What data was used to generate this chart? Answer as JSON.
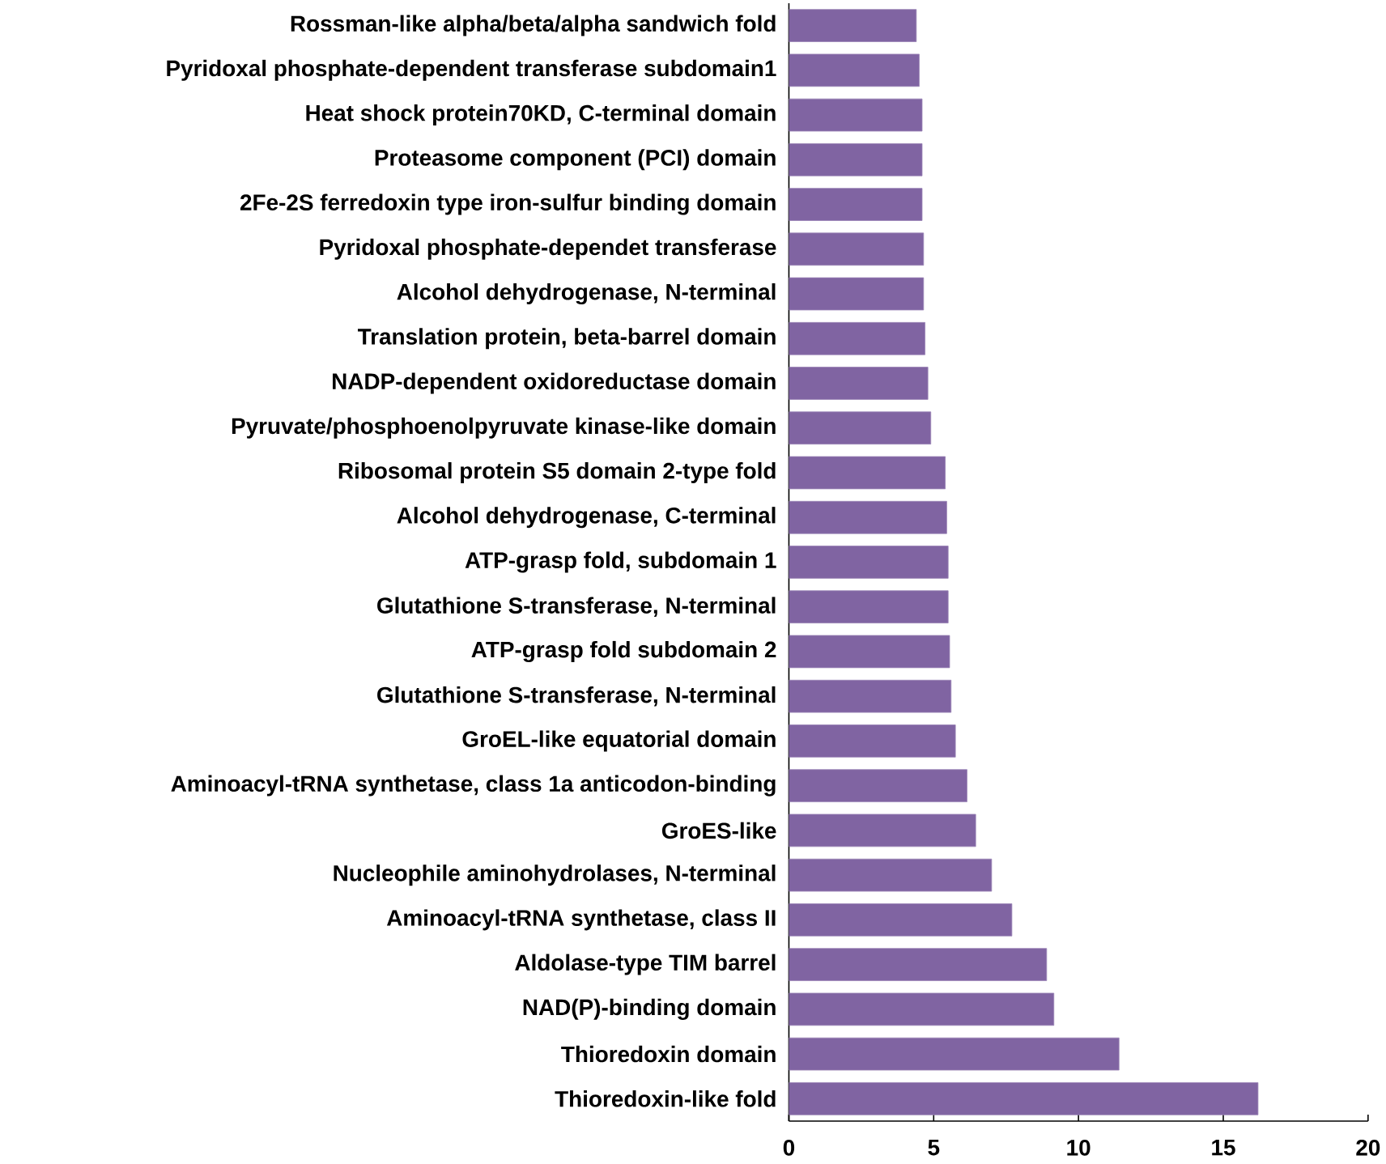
{
  "chart_data": {
    "type": "bar",
    "orientation": "horizontal",
    "color": "#8064a2",
    "grid": false,
    "categories": [
      "Rossman-like alpha/beta/alpha sandwich fold",
      "Pyridoxal phosphate-dependent transferase subdomain1",
      "Heat shock protein70KD, C-terminal domain",
      "Proteasome component (PCI) domain",
      "2Fe-2S ferredoxin type iron-sulfur binding domain",
      "Pyridoxal phosphate-dependet transferase",
      "Alcohol dehydrogenase, N-terminal",
      "Translation protein, beta-barrel domain",
      "NADP-dependent oxidoreductase domain",
      "Pyruvate/phosphoenolpyruvate kinase-like domain",
      "Ribosomal protein S5 domain 2-type fold",
      "Alcohol dehydrogenase, C-terminal",
      "ATP-grasp fold, subdomain 1",
      "Glutathione S-transferase, N-terminal",
      "ATP-grasp fold subdomain 2",
      "Glutathione S-transferase, N-terminal",
      "GroEL-like equatorial domain",
      "Aminoacyl-tRNA synthetase, class 1a anticodon-binding",
      "GroES-like",
      "Nucleophile aminohydrolases, N-terminal",
      "Aminoacyl-tRNA synthetase, class II",
      "Aldolase-type TIM barrel",
      "NAD(P)-binding domain",
      "Thioredoxin domain",
      "Thioredoxin-like fold"
    ],
    "values": [
      4.4,
      4.5,
      4.6,
      4.6,
      4.6,
      4.65,
      4.65,
      4.7,
      4.8,
      4.9,
      5.4,
      5.45,
      5.5,
      5.5,
      5.55,
      5.6,
      5.75,
      6.15,
      6.45,
      7.0,
      7.7,
      8.9,
      9.15,
      11.4,
      16.2
    ],
    "xlim": [
      0,
      20
    ],
    "xticks": [
      0,
      5,
      10,
      15,
      20
    ]
  }
}
